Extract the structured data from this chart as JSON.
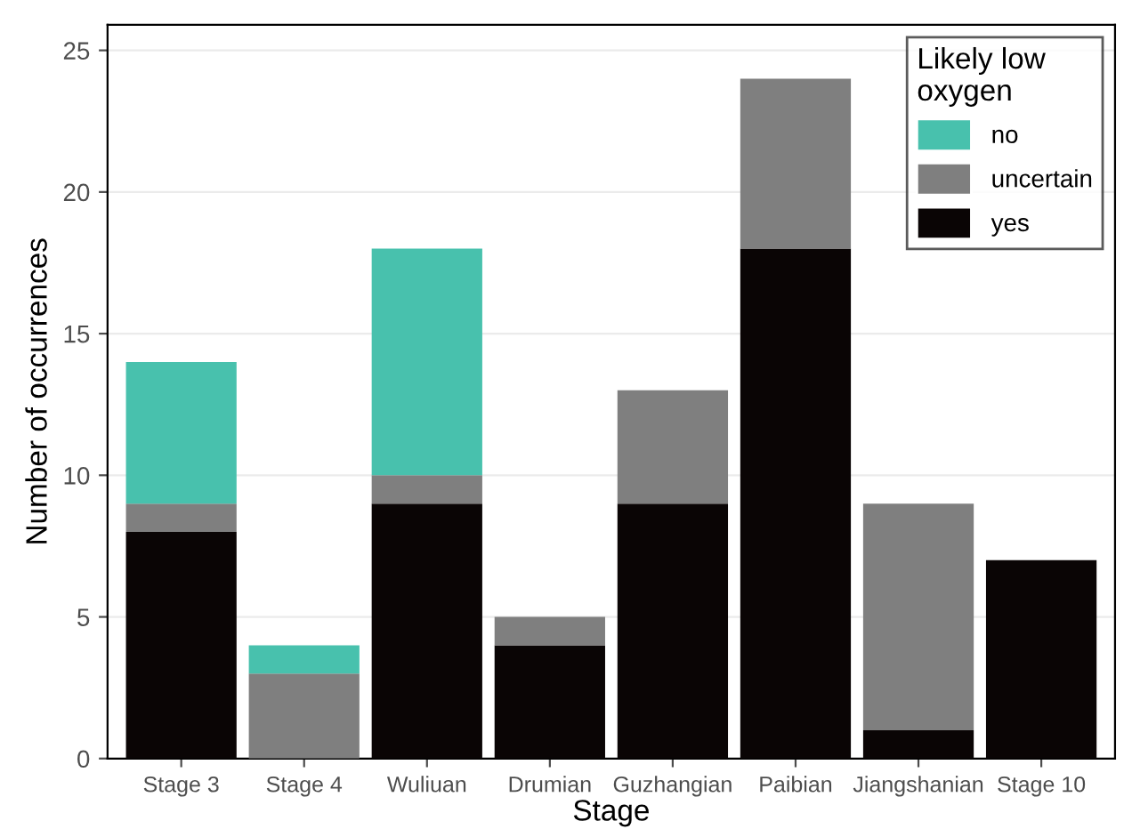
{
  "chart_data": {
    "type": "bar",
    "stacked": true,
    "xlabel": "Stage",
    "ylabel": "Number of occurrences",
    "legend_title": "Likely low\noxygen",
    "categories": [
      "Stage 3",
      "Stage 4",
      "Wuliuan",
      "Drumian",
      "Guzhangian",
      "Paibian",
      "Jiangshanian",
      "Stage 10"
    ],
    "series": [
      {
        "name": "yes",
        "color": "#0a0505",
        "values": [
          8,
          0,
          9,
          4,
          9,
          18,
          1,
          7
        ]
      },
      {
        "name": "uncertain",
        "color": "#7f7f7f",
        "values": [
          1,
          3,
          1,
          1,
          4,
          6,
          8,
          0
        ]
      },
      {
        "name": "no",
        "color": "#48c1ad",
        "values": [
          5,
          1,
          8,
          0,
          0,
          0,
          0,
          0
        ]
      }
    ],
    "ylim": [
      0,
      25.9
    ],
    "yticks": [
      0,
      5,
      10,
      15,
      20,
      25
    ],
    "grid": "y",
    "legend": "top right"
  }
}
